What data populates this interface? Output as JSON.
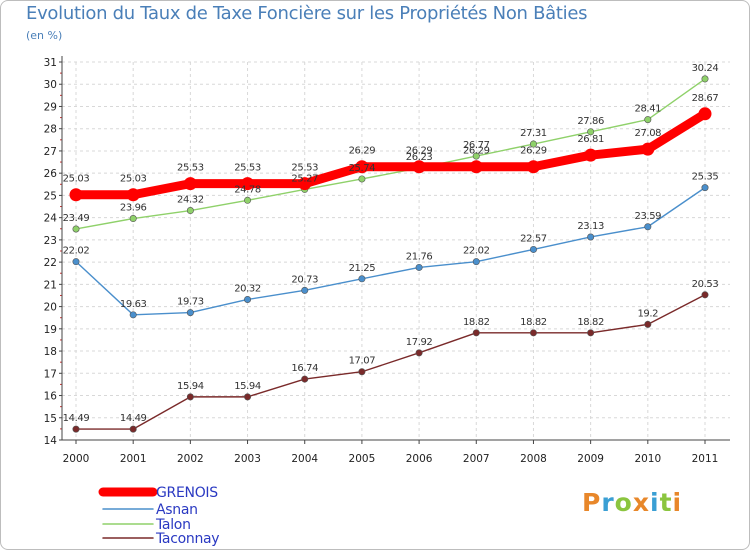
{
  "title": "Evolution du Taux de Taxe Foncière sur les Propriétés Non Bâties",
  "unit_label": "(en %)",
  "logo": {
    "text": "Proxiti",
    "letter_colors": [
      "#e8872a",
      "#3a9fd4",
      "#8bc53f",
      "#e8872a",
      "#3a9fd4",
      "#8bc53f",
      "#e8872a"
    ]
  },
  "chart_data": {
    "type": "line",
    "x": [
      "2000",
      "2001",
      "2002",
      "2003",
      "2004",
      "2005",
      "2006",
      "2007",
      "2008",
      "2009",
      "2010",
      "2011"
    ],
    "ylim": [
      14,
      31
    ],
    "yticks": [
      14,
      15,
      16,
      17,
      18,
      19,
      20,
      21,
      22,
      23,
      24,
      25,
      26,
      27,
      28,
      29,
      30,
      31
    ],
    "grid": true,
    "legend_position": "bottom-left",
    "series": [
      {
        "name": "GRENOIS",
        "color": "#ff0000",
        "values": [
          25.03,
          25.03,
          25.53,
          25.53,
          25.53,
          26.29,
          26.29,
          26.29,
          26.29,
          26.81,
          27.08,
          28.67
        ],
        "labels": [
          "25.03",
          "25.03",
          "25.53",
          "25.53",
          "25.53",
          "26.29",
          "26.29",
          "26.29",
          "26.29",
          "26.81",
          "27.08",
          "28.67"
        ]
      },
      {
        "name": "Asnan",
        "color": "#4a8fcc",
        "values": [
          22.02,
          19.63,
          19.73,
          20.32,
          20.73,
          21.25,
          21.76,
          22.02,
          22.57,
          23.13,
          23.59,
          25.35
        ],
        "labels": [
          "22.02",
          "19.63",
          "19.73",
          "20.32",
          "20.73",
          "21.25",
          "21.76",
          "22.02",
          "22.57",
          "23.13",
          "23.59",
          "25.35"
        ]
      },
      {
        "name": "Talon",
        "color": "#8fd16a",
        "values": [
          23.49,
          23.96,
          24.32,
          24.78,
          25.27,
          25.74,
          26.23,
          26.77,
          27.31,
          27.86,
          28.41,
          30.24
        ],
        "labels": [
          "23.49",
          "23.96",
          "24.32",
          "24.78",
          "25.27",
          "25.74",
          "26.23",
          "26.77",
          "27.31",
          "27.86",
          "28.41",
          "30.24"
        ]
      },
      {
        "name": "Taconnay",
        "color": "#7a2a2a",
        "values": [
          14.49,
          14.49,
          15.94,
          15.94,
          16.74,
          17.07,
          17.92,
          18.82,
          18.82,
          18.82,
          19.2,
          20.53
        ],
        "labels": [
          "14.49",
          "14.49",
          "15.94",
          "15.94",
          "16.74",
          "17.07",
          "17.92",
          "18.82",
          "18.82",
          "18.82",
          "19.2",
          "20.53"
        ]
      }
    ]
  }
}
